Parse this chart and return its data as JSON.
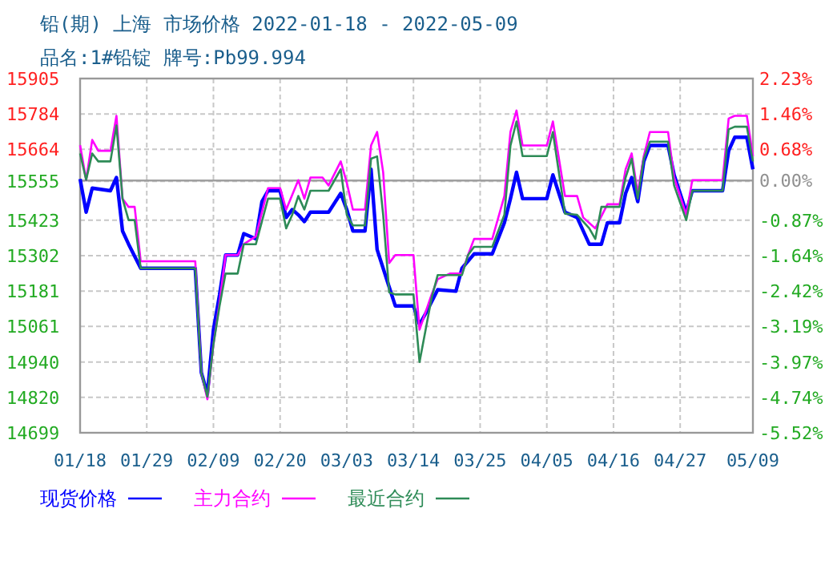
{
  "chart_data": {
    "type": "line",
    "title": "铅(期) 上海 市场价格 2022-01-18 - 2022-05-09",
    "subtitle": "品名:1#铅锭 牌号:Pb99.994",
    "xlim": [
      "2022-01-18",
      "2022-05-09"
    ],
    "xticks": [
      {
        "value": "2022-01-18",
        "label": "01/18"
      },
      {
        "value": "2022-01-29",
        "label": "01/29"
      },
      {
        "value": "2022-02-09",
        "label": "02/09"
      },
      {
        "value": "2022-02-20",
        "label": "02/20"
      },
      {
        "value": "2022-03-03",
        "label": "03/03"
      },
      {
        "value": "2022-03-14",
        "label": "03/14"
      },
      {
        "value": "2022-03-25",
        "label": "03/25"
      },
      {
        "value": "2022-04-05",
        "label": "04/05"
      },
      {
        "value": "2022-04-16",
        "label": "04/16"
      },
      {
        "value": "2022-04-27",
        "label": "04/27"
      },
      {
        "value": "2022-05-09",
        "label": "05/09"
      }
    ],
    "ylim": [
      14699,
      15905
    ],
    "yticks": [
      14699,
      14820,
      14940,
      15061,
      15181,
      15302,
      15423,
      15555,
      15664,
      15784,
      15905
    ],
    "y2lim": [
      -5.52,
      2.23
    ],
    "y2ticks": [
      {
        "value": -5.52,
        "label": "-5.52%"
      },
      {
        "value": -4.74,
        "label": "-4.74%"
      },
      {
        "value": -3.97,
        "label": "-3.97%"
      },
      {
        "value": -3.19,
        "label": "-3.19%"
      },
      {
        "value": -2.42,
        "label": "-2.42%"
      },
      {
        "value": -1.64,
        "label": "-1.64%"
      },
      {
        "value": -0.87,
        "label": "-0.87%"
      },
      {
        "value": 0,
        "label": "0.00%"
      },
      {
        "value": 0.68,
        "label": "0.68%"
      },
      {
        "value": 1.46,
        "label": "1.46%"
      },
      {
        "value": 2.23,
        "label": "2.23%"
      }
    ],
    "ref_lines": [
      {
        "axis": "y2",
        "value": 0,
        "color": "#a0a0a0"
      }
    ],
    "grid": true,
    "legend": "bottom",
    "series": [
      {
        "name": "现货价格",
        "color": "#0000ff",
        "x": [
          "2022-01-18",
          "2022-01-19",
          "2022-01-20",
          "2022-01-23",
          "2022-01-24",
          "2022-01-25",
          "2022-01-26",
          "2022-01-28",
          "2022-02-06",
          "2022-02-07",
          "2022-02-08",
          "2022-02-09",
          "2022-02-10",
          "2022-02-11",
          "2022-02-13",
          "2022-02-14",
          "2022-02-16",
          "2022-02-17",
          "2022-02-18",
          "2022-02-20",
          "2022-02-21",
          "2022-02-22",
          "2022-02-23",
          "2022-02-24",
          "2022-02-25",
          "2022-02-28",
          "2022-03-02",
          "2022-03-03",
          "2022-03-04",
          "2022-03-06",
          "2022-03-07",
          "2022-03-08",
          "2022-03-10",
          "2022-03-11",
          "2022-03-14",
          "2022-03-15",
          "2022-03-16",
          "2022-03-18",
          "2022-03-21",
          "2022-03-22",
          "2022-03-24",
          "2022-03-27",
          "2022-03-29",
          "2022-03-30",
          "2022-03-31",
          "2022-04-01",
          "2022-04-05",
          "2022-04-06",
          "2022-04-08",
          "2022-04-10",
          "2022-04-12",
          "2022-04-14",
          "2022-04-15",
          "2022-04-17",
          "2022-04-18",
          "2022-04-19",
          "2022-04-20",
          "2022-04-21",
          "2022-04-22",
          "2022-04-25",
          "2022-04-26",
          "2022-04-28",
          "2022-04-29",
          "2022-05-04",
          "2022-05-05",
          "2022-05-06",
          "2022-05-08",
          "2022-05-09"
        ],
        "values": [
          15563,
          15450,
          15532,
          15523,
          15568,
          15386,
          15341,
          15259,
          15259,
          14904,
          14831,
          15050,
          15168,
          15304,
          15304,
          15377,
          15359,
          15486,
          15523,
          15523,
          15432,
          15459,
          15441,
          15418,
          15450,
          15450,
          15514,
          15459,
          15386,
          15386,
          15596,
          15323,
          15195,
          15131,
          15131,
          15068,
          15105,
          15186,
          15181,
          15259,
          15308,
          15308,
          15414,
          15496,
          15586,
          15496,
          15496,
          15577,
          15450,
          15432,
          15341,
          15341,
          15414,
          15414,
          15514,
          15568,
          15486,
          15623,
          15677,
          15677,
          15577,
          15450,
          15523,
          15523,
          15659,
          15705,
          15705,
          15596
        ]
      },
      {
        "name": "主力合约",
        "color": "#ff00ff",
        "x": [
          "2022-01-18",
          "2022-01-19",
          "2022-01-20",
          "2022-01-21",
          "2022-01-23",
          "2022-01-24",
          "2022-01-25",
          "2022-01-26",
          "2022-01-27",
          "2022-01-28",
          "2022-02-06",
          "2022-02-07",
          "2022-02-08",
          "2022-02-09",
          "2022-02-10",
          "2022-02-11",
          "2022-02-13",
          "2022-02-14",
          "2022-02-16",
          "2022-02-18",
          "2022-02-20",
          "2022-02-21",
          "2022-02-23",
          "2022-02-24",
          "2022-02-25",
          "2022-02-27",
          "2022-02-28",
          "2022-03-02",
          "2022-03-03",
          "2022-03-04",
          "2022-03-06",
          "2022-03-07",
          "2022-03-08",
          "2022-03-09",
          "2022-03-10",
          "2022-03-11",
          "2022-03-14",
          "2022-03-15",
          "2022-03-17",
          "2022-03-18",
          "2022-03-20",
          "2022-03-22",
          "2022-03-23",
          "2022-03-24",
          "2022-03-27",
          "2022-03-29",
          "2022-03-30",
          "2022-03-31",
          "2022-04-01",
          "2022-04-05",
          "2022-04-06",
          "2022-04-08",
          "2022-04-10",
          "2022-04-11",
          "2022-04-13",
          "2022-04-15",
          "2022-04-17",
          "2022-04-18",
          "2022-04-19",
          "2022-04-20",
          "2022-04-21",
          "2022-04-22",
          "2022-04-25",
          "2022-04-26",
          "2022-04-28",
          "2022-04-29",
          "2022-05-04",
          "2022-05-05",
          "2022-05-06",
          "2022-05-08",
          "2022-05-09"
        ],
        "values": [
          15678,
          15560,
          15696,
          15659,
          15659,
          15778,
          15496,
          15468,
          15468,
          15283,
          15283,
          14904,
          14813,
          15000,
          15141,
          15304,
          15304,
          15341,
          15368,
          15532,
          15532,
          15459,
          15559,
          15496,
          15568,
          15568,
          15541,
          15623,
          15550,
          15459,
          15459,
          15677,
          15723,
          15586,
          15277,
          15304,
          15304,
          15050,
          15170,
          15222,
          15241,
          15241,
          15304,
          15359,
          15359,
          15505,
          15723,
          15796,
          15677,
          15677,
          15759,
          15505,
          15505,
          15432,
          15395,
          15477,
          15477,
          15596,
          15650,
          15514,
          15641,
          15723,
          15723,
          15568,
          15441,
          15559,
          15559,
          15769,
          15778,
          15778,
          15641
        ]
      },
      {
        "name": "最近合约",
        "color": "#2e8b57",
        "x": [
          "2022-01-18",
          "2022-01-19",
          "2022-01-20",
          "2022-01-21",
          "2022-01-23",
          "2022-01-24",
          "2022-01-25",
          "2022-01-26",
          "2022-01-27",
          "2022-01-28",
          "2022-02-06",
          "2022-02-07",
          "2022-02-08",
          "2022-02-09",
          "2022-02-10",
          "2022-02-11",
          "2022-02-13",
          "2022-02-14",
          "2022-02-16",
          "2022-02-18",
          "2022-02-20",
          "2022-02-21",
          "2022-02-22",
          "2022-02-23",
          "2022-02-24",
          "2022-02-25",
          "2022-02-28",
          "2022-03-02",
          "2022-03-03",
          "2022-03-04",
          "2022-03-06",
          "2022-03-07",
          "2022-03-08",
          "2022-03-09",
          "2022-03-10",
          "2022-03-11",
          "2022-03-14",
          "2022-03-15",
          "2022-03-17",
          "2022-03-18",
          "2022-03-20",
          "2022-03-22",
          "2022-03-23",
          "2022-03-24",
          "2022-03-27",
          "2022-03-29",
          "2022-03-30",
          "2022-03-31",
          "2022-04-01",
          "2022-04-05",
          "2022-04-06",
          "2022-04-08",
          "2022-04-10",
          "2022-04-12",
          "2022-04-13",
          "2022-04-14",
          "2022-04-17",
          "2022-04-18",
          "2022-04-19",
          "2022-04-20",
          "2022-04-21",
          "2022-04-22",
          "2022-04-25",
          "2022-04-26",
          "2022-04-28",
          "2022-04-29",
          "2022-05-04",
          "2022-05-05",
          "2022-05-06",
          "2022-05-08",
          "2022-05-09"
        ],
        "values": [
          15650,
          15560,
          15650,
          15623,
          15623,
          15745,
          15496,
          15423,
          15423,
          15259,
          15259,
          14904,
          14822,
          15000,
          15130,
          15241,
          15241,
          15341,
          15341,
          15496,
          15496,
          15395,
          15441,
          15505,
          15459,
          15523,
          15523,
          15596,
          15441,
          15405,
          15405,
          15632,
          15640,
          15441,
          15177,
          15170,
          15170,
          14940,
          15159,
          15236,
          15236,
          15236,
          15304,
          15332,
          15332,
          15441,
          15677,
          15759,
          15641,
          15641,
          15723,
          15445,
          15441,
          15395,
          15359,
          15468,
          15468,
          15568,
          15632,
          15496,
          15632,
          15690,
          15690,
          15541,
          15423,
          15523,
          15523,
          15732,
          15741,
          15741,
          15623
        ]
      }
    ]
  }
}
